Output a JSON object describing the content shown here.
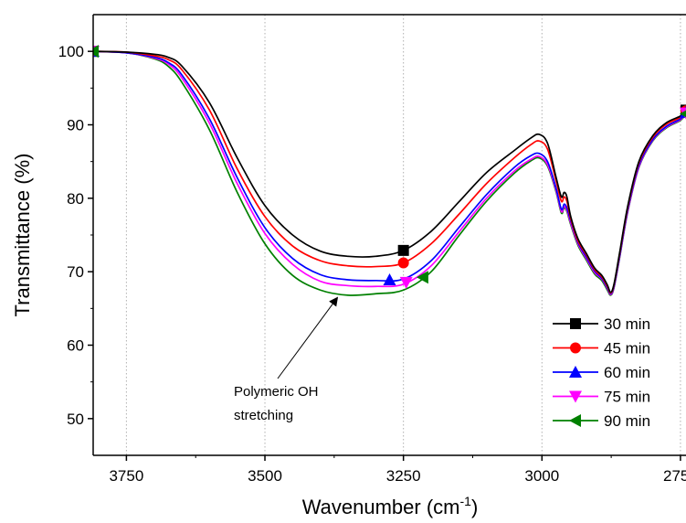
{
  "chart_data": {
    "type": "line",
    "xlabel": "Wavenumber (cm",
    "xlabel_sup": "-1",
    "xlabel_close": ")",
    "ylabel": "Transmittance (%)",
    "xlim": [
      3810,
      2740
    ],
    "ylim": [
      45,
      105
    ],
    "x_ticks": [
      3750,
      3500,
      3250,
      3000,
      2750
    ],
    "x_tick_labels": [
      "3750",
      "3500",
      "3250",
      "3000",
      "2750"
    ],
    "y_ticks": [
      50,
      60,
      70,
      80,
      90,
      100
    ],
    "y_tick_labels": [
      "50",
      "60",
      "70",
      "80",
      "90",
      "100"
    ],
    "grid": "vertical dotted at x ticks",
    "legend_position": "bottom-right",
    "x": [
      3810,
      3750,
      3700,
      3675,
      3650,
      3600,
      3550,
      3500,
      3450,
      3400,
      3350,
      3300,
      3250,
      3200,
      3150,
      3100,
      3050,
      3020,
      3005,
      2990,
      2975,
      2965,
      2960,
      2955,
      2948,
      2935,
      2920,
      2905,
      2892,
      2882,
      2876,
      2870,
      2860,
      2845,
      2825,
      2800,
      2775,
      2750,
      2740
    ],
    "series": [
      {
        "name": "30 min",
        "color": "#000000",
        "marker": "square",
        "marker_x": [
          3810,
          3250,
          2740
        ],
        "values": [
          100,
          99.9,
          99.6,
          99.2,
          98,
          93,
          85.5,
          79,
          75,
          72.8,
          72.1,
          72.1,
          72.9,
          75.5,
          79.5,
          83.5,
          86.5,
          88.2,
          88.7,
          87.5,
          83,
          80.2,
          80.8,
          80.2,
          77.5,
          74.5,
          72.5,
          70.5,
          69.5,
          68.2,
          67.2,
          68.3,
          72.5,
          79,
          85,
          88.5,
          90.3,
          91.2,
          92
        ]
      },
      {
        "name": "45 min",
        "color": "#ff0000",
        "marker": "circle",
        "marker_x": [
          3810,
          3250,
          2740
        ],
        "values": [
          100,
          99.9,
          99.4,
          98.9,
          97.5,
          92,
          84,
          77.5,
          73.5,
          71.5,
          70.8,
          70.7,
          71.2,
          73.8,
          77.8,
          82,
          85.5,
          87.3,
          87.8,
          86.7,
          82.5,
          79.6,
          80.2,
          79.6,
          77.2,
          74.2,
          72.3,
          70.3,
          69.3,
          68,
          67.1,
          68.2,
          72.3,
          78.8,
          84.8,
          88.3,
          90.1,
          91.0,
          91.9
        ]
      },
      {
        "name": "60 min",
        "color": "#0000ff",
        "marker": "triangle-up",
        "marker_x": [
          3810,
          3275,
          2740
        ],
        "values": [
          100,
          99.8,
          99.2,
          98.5,
          96.8,
          90.8,
          82.8,
          76,
          71.8,
          69.6,
          68.9,
          68.8,
          69,
          71.5,
          76,
          80.5,
          84.2,
          85.8,
          86.1,
          85,
          81.5,
          78.5,
          79.2,
          78.7,
          76.9,
          74,
          72,
          70.1,
          69.1,
          67.8,
          67,
          68,
          72,
          78.5,
          84.5,
          88,
          89.8,
          90.8,
          91.7
        ]
      },
      {
        "name": "75 min",
        "color": "#ff00ff",
        "marker": "triangle-down",
        "marker_x": [
          3810,
          3245,
          2740
        ],
        "values": [
          100,
          99.8,
          99.1,
          98.3,
          96.4,
          90.2,
          82,
          75.2,
          71,
          68.7,
          68.1,
          68,
          68.3,
          70.8,
          75.4,
          80,
          83.7,
          85.3,
          85.7,
          84.6,
          81.2,
          78.2,
          78.9,
          78.4,
          76.6,
          73.8,
          71.8,
          69.9,
          69,
          67.7,
          66.9,
          67.9,
          71.9,
          78.3,
          84.3,
          87.9,
          89.7,
          90.7,
          91.6
        ]
      },
      {
        "name": "90 min",
        "color": "#008000",
        "marker": "triangle-left",
        "marker_x": [
          3810,
          3215,
          2740
        ],
        "values": [
          100,
          99.8,
          99,
          98,
          95.8,
          89.3,
          80.8,
          73.8,
          69.5,
          67.5,
          66.8,
          67,
          67.5,
          70,
          74.9,
          79.6,
          83.4,
          85.1,
          85.5,
          84.4,
          81,
          78,
          78.7,
          78.2,
          76.4,
          73.6,
          71.6,
          69.7,
          68.8,
          67.5,
          66.8,
          67.8,
          71.8,
          78.2,
          84.2,
          87.8,
          89.6,
          90.6,
          91.5
        ]
      }
    ],
    "annotation": {
      "line1": "Polymeric OH",
      "line2": "stretching",
      "arrow_to_x": 3370,
      "arrow_to_y": 66.9
    }
  }
}
